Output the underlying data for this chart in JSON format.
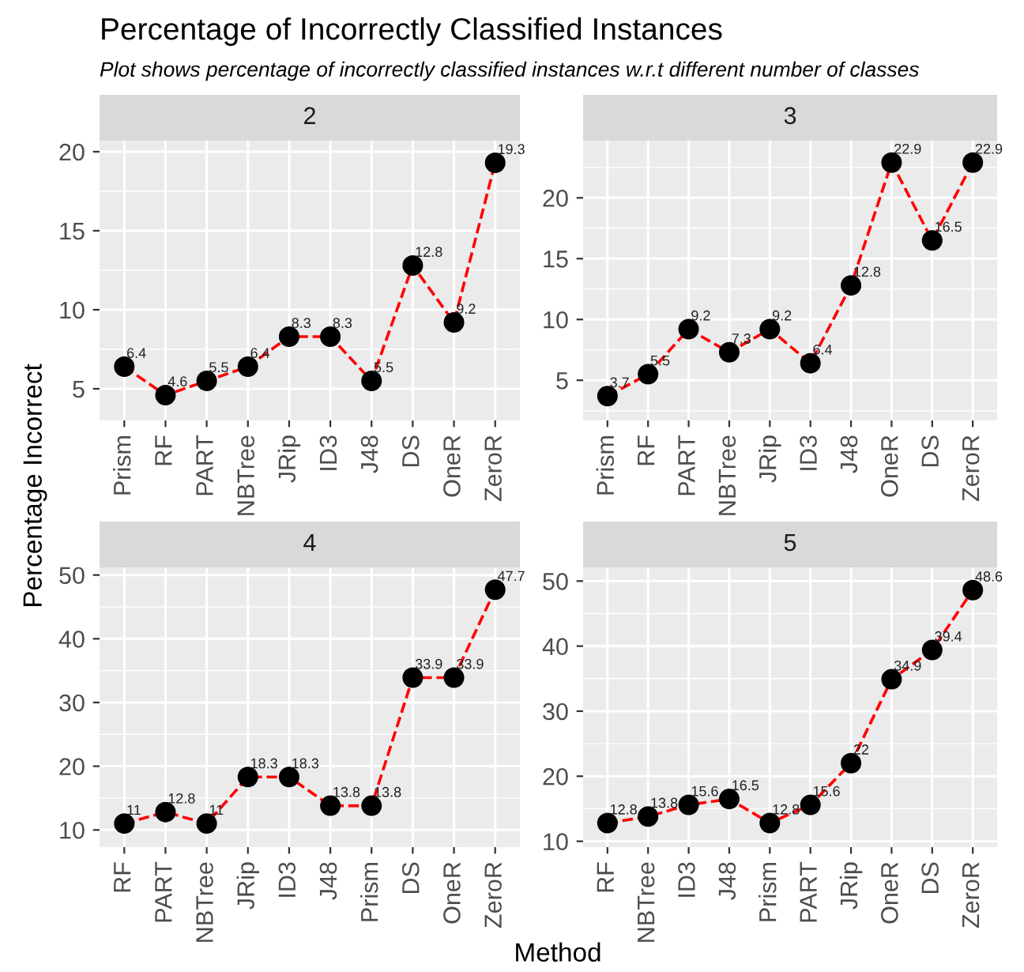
{
  "chart_data": [
    {
      "type": "line",
      "title": "2",
      "annotations": [
        "Percentage of Incorrectly Classified Instances",
        "Plot shows percentage of incorrectly classified instances w.r.t different number of classes"
      ],
      "ylabel": "Percentage Incorrect",
      "categories": [
        "Prism",
        "RF",
        "PART",
        "NBTree",
        "JRip",
        "ID3",
        "J48",
        "DS",
        "OneR",
        "ZeroR"
      ],
      "series": [
        {
          "color": "#ff0000",
          "values": [
            6.4,
            4.6,
            5.5,
            6.4,
            8.3,
            8.3,
            5.5,
            12.8,
            9.2,
            19.3
          ]
        }
      ],
      "ylim": [
        3.0,
        20.7
      ],
      "yticks": [
        5,
        10,
        15,
        20
      ],
      "grid": true,
      "marker": "circle",
      "line_style": "dashed",
      "data_labels": true
    },
    {
      "type": "line",
      "title": "3",
      "categories": [
        "Prism",
        "RF",
        "PART",
        "NBTree",
        "JRip",
        "ID3",
        "J48",
        "OneR",
        "DS",
        "ZeroR"
      ],
      "series": [
        {
          "color": "#ff0000",
          "values": [
            3.7,
            5.5,
            9.2,
            7.3,
            9.2,
            6.4,
            12.8,
            22.9,
            16.5,
            22.9
          ]
        }
      ],
      "ylim": [
        1.7,
        24.7
      ],
      "yticks": [
        5,
        10,
        15,
        20
      ],
      "grid": true,
      "marker": "circle",
      "line_style": "dashed",
      "data_labels": true
    },
    {
      "type": "line",
      "title": "4",
      "xlabel": "Method",
      "categories": [
        "RF",
        "PART",
        "NBTree",
        "JRip",
        "ID3",
        "J48",
        "Prism",
        "DS",
        "OneR",
        "ZeroR"
      ],
      "series": [
        {
          "color": "#ff0000",
          "values": [
            11,
            12.8,
            11,
            18.3,
            18.3,
            13.8,
            13.8,
            33.9,
            33.9,
            47.7
          ]
        }
      ],
      "ylim": [
        7.3,
        51.2
      ],
      "yticks": [
        10,
        20,
        30,
        40,
        50
      ],
      "grid": true,
      "marker": "circle",
      "line_style": "dashed",
      "data_labels": true
    },
    {
      "type": "line",
      "title": "5",
      "categories": [
        "RF",
        "NBTree",
        "ID3",
        "J48",
        "Prism",
        "PART",
        "JRip",
        "OneR",
        "DS",
        "ZeroR"
      ],
      "series": [
        {
          "color": "#ff0000",
          "values": [
            12.8,
            13.8,
            15.6,
            16.5,
            12.8,
            15.6,
            22,
            34.9,
            39.4,
            48.6
          ]
        }
      ],
      "ylim": [
        9.1,
        52.1
      ],
      "yticks": [
        10,
        20,
        30,
        40,
        50
      ],
      "grid": true,
      "marker": "circle",
      "line_style": "dashed",
      "data_labels": true
    }
  ]
}
